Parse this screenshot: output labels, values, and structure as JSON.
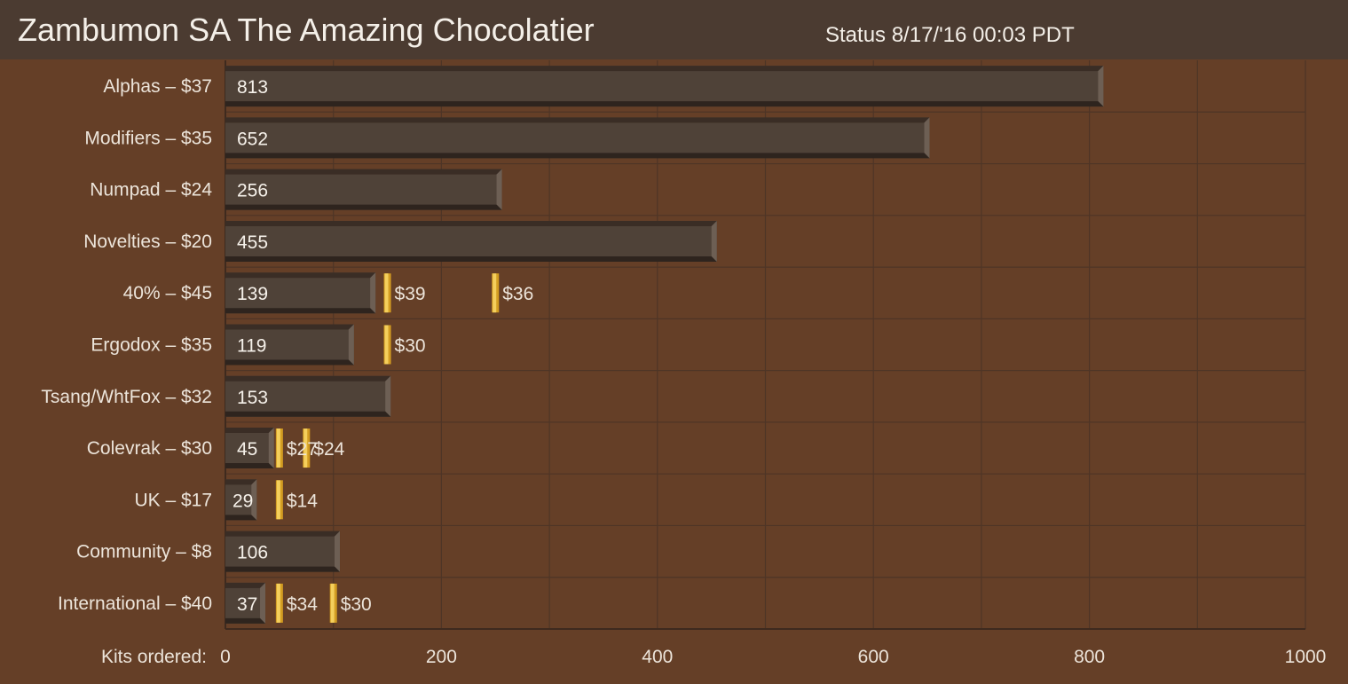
{
  "header": {
    "title": "Zambumon SA The Amazing Chocolatier",
    "status": "Status 8/17/'16  00:03 PDT"
  },
  "colors": {
    "background": "#653f27",
    "header": "#4b3b31",
    "bar": "#4f4238",
    "tier_marker": "#e8b93a",
    "grid": "#4e3526"
  },
  "chart_data": {
    "type": "bar",
    "orientation": "horizontal",
    "categories": [
      "Alphas – $37",
      "Modifiers – $35",
      "Numpad – $24",
      "Novelties – $20",
      "40% – $45",
      "Ergodox – $35",
      "Tsang/WhtFox – $32",
      "Colevrak – $30",
      "UK – $17",
      "Community – $8",
      "International – $40"
    ],
    "values": [
      813,
      652,
      256,
      455,
      139,
      119,
      153,
      45,
      29,
      106,
      37
    ],
    "price_tiers": [
      [],
      [],
      [],
      [],
      [
        {
          "at": 150,
          "label": "$39"
        },
        {
          "at": 250,
          "label": "$36"
        }
      ],
      [
        {
          "at": 150,
          "label": "$30"
        }
      ],
      [],
      [
        {
          "at": 50,
          "label": "$27"
        },
        {
          "at": 75,
          "label": "$24"
        }
      ],
      [
        {
          "at": 50,
          "label": "$14"
        }
      ],
      [],
      [
        {
          "at": 50,
          "label": "$34"
        },
        {
          "at": 100,
          "label": "$30"
        }
      ]
    ],
    "xlabel": "Kits ordered:",
    "xlim": [
      0,
      1000
    ],
    "xticks": [
      0,
      200,
      400,
      600,
      800,
      1000
    ],
    "grid": true,
    "legend": "none"
  }
}
